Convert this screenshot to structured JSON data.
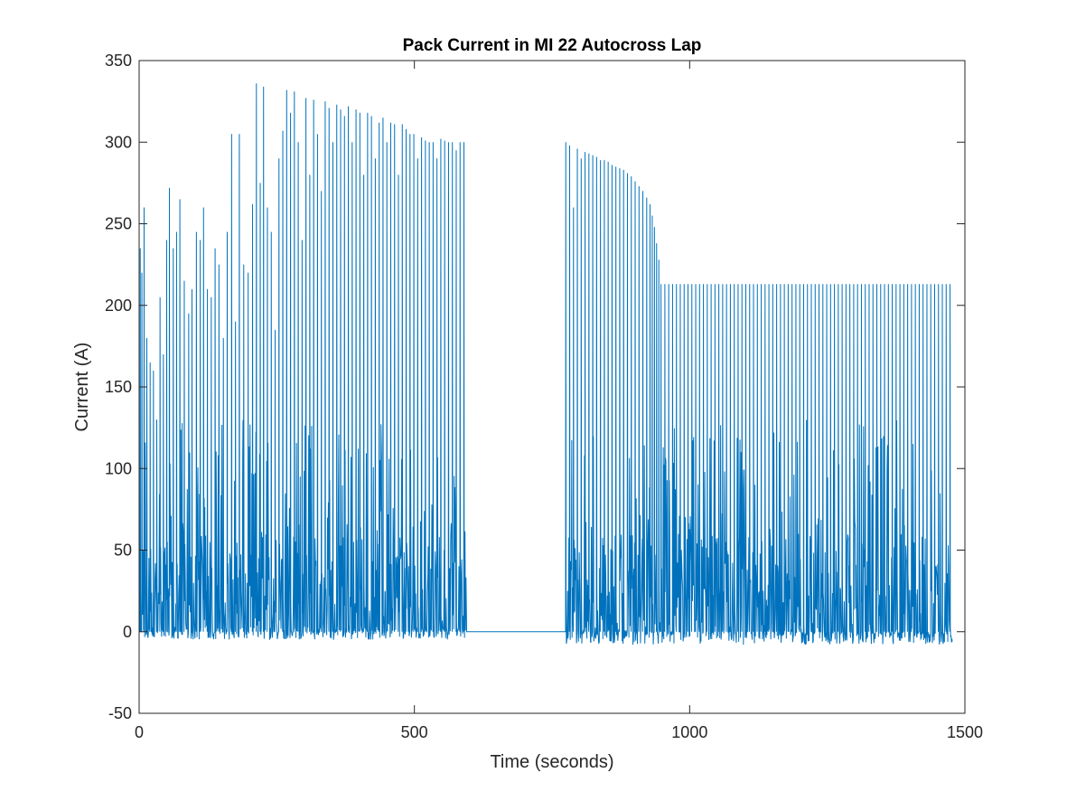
{
  "chart_data": {
    "type": "line",
    "title": "Pack Current in MI 22 Autocross Lap",
    "xlabel": "Time (seconds)",
    "ylabel": "Current (A)",
    "xlim": [
      0,
      1500
    ],
    "ylim": [
      -50,
      350
    ],
    "xticks": [
      0,
      500,
      1000,
      1500
    ],
    "yticks": [
      -50,
      0,
      50,
      100,
      150,
      200,
      250,
      300,
      350
    ],
    "xtick_labels": [
      "0",
      "500",
      "1000",
      "1500"
    ],
    "ytick_labels": [
      "-50",
      "0",
      "50",
      "100",
      "150",
      "200",
      "250",
      "300",
      "350"
    ],
    "grid": false,
    "series": [
      {
        "name": "Pack Current",
        "color": "#0072BD",
        "segments": [
          {
            "range": [
              0,
              595
            ],
            "min": -5,
            "peaks": [
              [
                2,
                235
              ],
              [
                5,
                220
              ],
              [
                9,
                260
              ],
              [
                14,
                180
              ],
              [
                20,
                165
              ],
              [
                26,
                160
              ],
              [
                32,
                130
              ],
              [
                38,
                205
              ],
              [
                44,
                170
              ],
              [
                50,
                240
              ],
              [
                55,
                272
              ],
              [
                62,
                235
              ],
              [
                68,
                245
              ],
              [
                74,
                265
              ],
              [
                82,
                215
              ],
              [
                90,
                195
              ],
              [
                96,
                210
              ],
              [
                104,
                245
              ],
              [
                111,
                240
              ],
              [
                117,
                260
              ],
              [
                124,
                210
              ],
              [
                131,
                205
              ],
              [
                138,
                235
              ],
              [
                145,
                225
              ],
              [
                153,
                180
              ],
              [
                160,
                245
              ],
              [
                168,
                305
              ],
              [
                175,
                190
              ],
              [
                182,
                305
              ],
              [
                190,
                225
              ],
              [
                198,
                220
              ],
              [
                206,
                262
              ],
              [
                213,
                336
              ],
              [
                220,
                275
              ],
              [
                226,
                334
              ],
              [
                233,
                260
              ],
              [
                240,
                245
              ],
              [
                247,
                185
              ],
              [
                254,
                290
              ],
              [
                261,
                307
              ],
              [
                268,
                332
              ],
              [
                275,
                318
              ],
              [
                282,
                331
              ],
              [
                289,
                300
              ],
              [
                296,
                240
              ],
              [
                303,
                327
              ],
              [
                310,
                280
              ],
              [
                317,
                326
              ],
              [
                324,
                305
              ],
              [
                331,
                270
              ],
              [
                338,
                325
              ],
              [
                345,
                321
              ],
              [
                352,
                300
              ],
              [
                359,
                323
              ],
              [
                366,
                320
              ],
              [
                373,
                316
              ],
              [
                380,
                322
              ],
              [
                387,
                300
              ],
              [
                394,
                320
              ],
              [
                401,
                318
              ],
              [
                408,
                280
              ],
              [
                415,
                318
              ],
              [
                422,
                316
              ],
              [
                429,
                290
              ],
              [
                436,
                312
              ],
              [
                443,
                315
              ],
              [
                450,
                300
              ],
              [
                457,
                312
              ],
              [
                464,
                311
              ],
              [
                471,
                280
              ],
              [
                478,
                311
              ],
              [
                485,
                308
              ],
              [
                492,
                305
              ],
              [
                499,
                305
              ],
              [
                506,
                290
              ],
              [
                513,
                303
              ],
              [
                520,
                301
              ],
              [
                527,
                300
              ],
              [
                534,
                300
              ],
              [
                541,
                290
              ],
              [
                548,
                302
              ],
              [
                555,
                301
              ],
              [
                562,
                300
              ],
              [
                569,
                300
              ],
              [
                576,
                295
              ],
              [
                583,
                300
              ],
              [
                590,
                300
              ]
            ]
          },
          {
            "range": [
              595,
              773
            ],
            "value": 0
          },
          {
            "range": [
              773,
              1478
            ],
            "min": -8,
            "peaks": [
              [
                775,
                300
              ],
              [
                782,
                298
              ],
              [
                789,
                260
              ],
              [
                796,
                296
              ],
              [
                803,
                290
              ],
              [
                810,
                294
              ],
              [
                817,
                293
              ],
              [
                824,
                292
              ],
              [
                831,
                291
              ],
              [
                838,
                289
              ],
              [
                845,
                289
              ],
              [
                852,
                288
              ],
              [
                859,
                286
              ],
              [
                866,
                285
              ],
              [
                873,
                284
              ],
              [
                880,
                283
              ],
              [
                887,
                281
              ],
              [
                894,
                279
              ],
              [
                901,
                276
              ],
              [
                908,
                273
              ],
              [
                915,
                270
              ],
              [
                922,
                266
              ],
              [
                928,
                262
              ],
              [
                932,
                255
              ],
              [
                936,
                248
              ],
              [
                940,
                238
              ],
              [
                944,
                228
              ],
              [
                948,
                213
              ],
              [
                955,
                213
              ],
              [
                962,
                213
              ],
              [
                969,
                213
              ],
              [
                976,
                213
              ],
              [
                983,
                213
              ],
              [
                990,
                213
              ],
              [
                997,
                213
              ],
              [
                1004,
                213
              ],
              [
                1011,
                213
              ],
              [
                1018,
                213
              ],
              [
                1025,
                213
              ],
              [
                1032,
                213
              ],
              [
                1039,
                213
              ],
              [
                1046,
                213
              ],
              [
                1053,
                213
              ],
              [
                1060,
                213
              ],
              [
                1067,
                213
              ],
              [
                1074,
                213
              ],
              [
                1081,
                213
              ],
              [
                1088,
                213
              ],
              [
                1095,
                213
              ],
              [
                1102,
                213
              ],
              [
                1109,
                213
              ],
              [
                1116,
                213
              ],
              [
                1123,
                213
              ],
              [
                1130,
                213
              ],
              [
                1137,
                213
              ],
              [
                1144,
                213
              ],
              [
                1151,
                213
              ],
              [
                1158,
                213
              ],
              [
                1165,
                213
              ],
              [
                1172,
                213
              ],
              [
                1179,
                213
              ],
              [
                1186,
                213
              ],
              [
                1193,
                213
              ],
              [
                1200,
                213
              ],
              [
                1207,
                213
              ],
              [
                1214,
                213
              ],
              [
                1221,
                213
              ],
              [
                1228,
                213
              ],
              [
                1235,
                213
              ],
              [
                1242,
                213
              ],
              [
                1249,
                213
              ],
              [
                1256,
                213
              ],
              [
                1263,
                213
              ],
              [
                1270,
                213
              ],
              [
                1277,
                213
              ],
              [
                1284,
                213
              ],
              [
                1291,
                213
              ],
              [
                1298,
                213
              ],
              [
                1305,
                213
              ],
              [
                1312,
                213
              ],
              [
                1319,
                213
              ],
              [
                1326,
                213
              ],
              [
                1333,
                213
              ],
              [
                1340,
                213
              ],
              [
                1347,
                213
              ],
              [
                1354,
                213
              ],
              [
                1361,
                213
              ],
              [
                1368,
                213
              ],
              [
                1375,
                213
              ],
              [
                1382,
                213
              ],
              [
                1389,
                213
              ],
              [
                1396,
                213
              ],
              [
                1403,
                213
              ],
              [
                1410,
                213
              ],
              [
                1417,
                213
              ],
              [
                1424,
                213
              ],
              [
                1431,
                213
              ],
              [
                1438,
                213
              ],
              [
                1445,
                213
              ],
              [
                1452,
                213
              ],
              [
                1459,
                213
              ],
              [
                1466,
                213
              ],
              [
                1473,
                213
              ]
            ]
          }
        ]
      }
    ]
  }
}
